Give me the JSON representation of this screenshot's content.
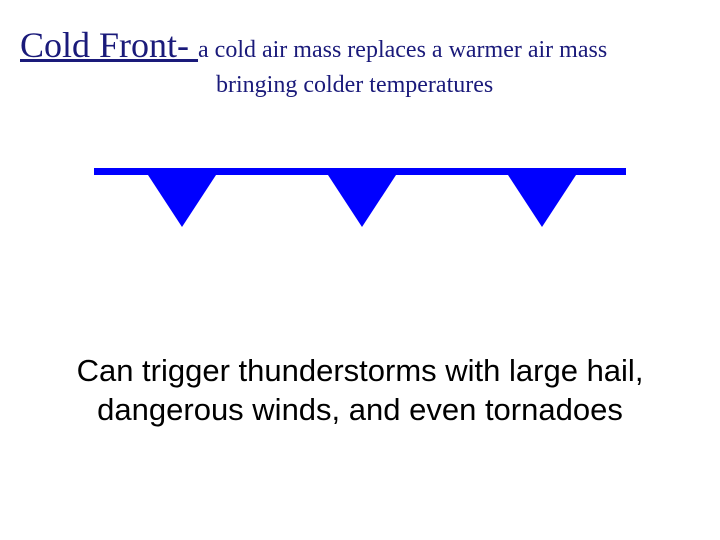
{
  "title": {
    "term": "Cold Front- ",
    "definition_part1": "a cold air mass replaces a warmer air mass",
    "definition_part2": "bringing colder temperatures"
  },
  "symbol": {
    "line_color": "#0000ff",
    "line_width": 532,
    "line_thickness": 7,
    "triangle_color": "#0000ff",
    "triangle_count": 3,
    "triangle_width": 68,
    "triangle_height": 52,
    "triangle_positions_x": [
      54,
      234,
      414
    ]
  },
  "effects": {
    "text": "Can trigger thunderstorms with large hail, dangerous winds, and even tornadoes"
  },
  "colors": {
    "title_text": "#1a1a7a",
    "body_text": "#000000",
    "background": "#ffffff"
  },
  "typography": {
    "title_term_fontsize": 36,
    "title_def_fontsize": 24,
    "effects_fontsize": 31,
    "title_fontfamily": "Times New Roman",
    "effects_fontfamily": "Verdana"
  }
}
